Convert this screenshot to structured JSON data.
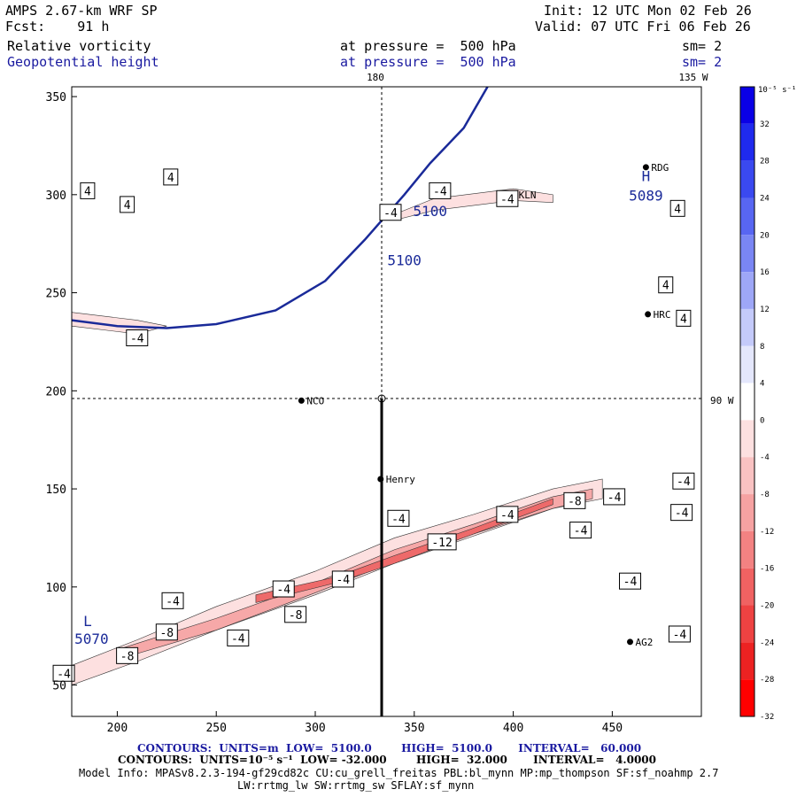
{
  "header": {
    "model_title": "AMPS 2.67-km WRF SP",
    "fcst": "Fcst:    91 h",
    "init": "Init: 12 UTC Mon 02 Feb 26",
    "valid": "Valid: 07 UTC Fri 06 Feb 26",
    "field1_name": "Relative vorticity",
    "field1_level": "at pressure =  500 hPa",
    "field1_sm": "sm= 2",
    "field2_name": "Geopotential height",
    "field2_level": "at pressure =  500 hPa",
    "field2_sm": "sm= 2"
  },
  "map_labels": {
    "lon_180": "180",
    "lon_135w": "135 W",
    "lon_90w": "90 W"
  },
  "stations": [
    {
      "name": "NCO",
      "x": 293,
      "y": 195
    },
    {
      "name": "Henry",
      "x": 333,
      "y": 155
    },
    {
      "name": "KLN",
      "x": 400,
      "y": 300
    },
    {
      "name": "RDG",
      "x": 467,
      "y": 314
    },
    {
      "name": "HRC",
      "x": 468,
      "y": 239
    },
    {
      "name": "AG2",
      "x": 459,
      "y": 72
    }
  ],
  "colors": {
    "height_contour": "#1a2a99",
    "vort_neg_light": "#fde0e0",
    "vort_neg_mid": "#f6a8a8",
    "vort_neg_dark": "#ee6a6a"
  },
  "chart_data": {
    "type": "contour",
    "xlim": [
      177,
      495
    ],
    "ylim": [
      34,
      355
    ],
    "x_ticks": [
      200,
      250,
      300,
      350,
      400,
      450
    ],
    "y_ticks": [
      50,
      100,
      150,
      200,
      250,
      300,
      350
    ],
    "height_contours": [
      {
        "value": "5100",
        "points": [
          [
            177,
            236
          ],
          [
            200,
            233
          ],
          [
            225,
            232
          ],
          [
            250,
            234
          ],
          [
            280,
            241
          ],
          [
            305,
            256
          ],
          [
            325,
            277
          ],
          [
            345,
            300
          ],
          [
            358,
            316
          ],
          [
            375,
            334
          ],
          [
            387,
            355
          ]
        ]
      }
    ],
    "height_labels": [
      {
        "text": "5100",
        "x": 345,
        "y": 264
      },
      {
        "text": "5100",
        "x": 358,
        "y": 289
      },
      {
        "text": "H",
        "x": 467,
        "y": 307
      },
      {
        "text": "5089",
        "x": 467,
        "y": 297
      },
      {
        "text": "L",
        "x": 185,
        "y": 80
      },
      {
        "text": "5070",
        "x": 187,
        "y": 71
      }
    ],
    "vorticity_labels": [
      {
        "text": "4",
        "x": 185,
        "y": 302
      },
      {
        "text": "4",
        "x": 205,
        "y": 295
      },
      {
        "text": "4",
        "x": 227,
        "y": 309
      },
      {
        "text": "-4",
        "x": 210,
        "y": 227
      },
      {
        "text": "-4",
        "x": 338,
        "y": 291
      },
      {
        "text": "-4",
        "x": 363,
        "y": 302
      },
      {
        "text": "-4",
        "x": 397,
        "y": 298
      },
      {
        "text": "4",
        "x": 483,
        "y": 293
      },
      {
        "text": "4",
        "x": 477,
        "y": 254
      },
      {
        "text": "4",
        "x": 486,
        "y": 237
      },
      {
        "text": "-4",
        "x": 486,
        "y": 154
      },
      {
        "text": "-4",
        "x": 485,
        "y": 138
      },
      {
        "text": "-8",
        "x": 431,
        "y": 144
      },
      {
        "text": "-4",
        "x": 451,
        "y": 146
      },
      {
        "text": "-4",
        "x": 397,
        "y": 137
      },
      {
        "text": "-4",
        "x": 434,
        "y": 129
      },
      {
        "text": "-12",
        "x": 364,
        "y": 123
      },
      {
        "text": "-4",
        "x": 342,
        "y": 135
      },
      {
        "text": "-4",
        "x": 459,
        "y": 103
      },
      {
        "text": "-4",
        "x": 484,
        "y": 76
      },
      {
        "text": "-4",
        "x": 314,
        "y": 104
      },
      {
        "text": "-4",
        "x": 284,
        "y": 99
      },
      {
        "text": "-8",
        "x": 290,
        "y": 86
      },
      {
        "text": "-4",
        "x": 228,
        "y": 93
      },
      {
        "text": "-8",
        "x": 225,
        "y": 77
      },
      {
        "text": "-4",
        "x": 261,
        "y": 74
      },
      {
        "text": "-8",
        "x": 205,
        "y": 65
      },
      {
        "text": "-4",
        "x": 173,
        "y": 56
      }
    ],
    "colorbar": {
      "unit": "10⁻⁵ s⁻¹",
      "ticks": [
        "32",
        "28",
        "24",
        "20",
        "16",
        "12",
        "8",
        "4",
        "0",
        "-4",
        "-8",
        "-12",
        "-16",
        "-20",
        "-24",
        "-28",
        "-32"
      ],
      "colors": [
        "#0a00e6",
        "#1f2aee",
        "#3a49f0",
        "#5866f2",
        "#7a86f4",
        "#9ea7f7",
        "#c4cafa",
        "#e4e7fc",
        "#ffffff",
        "#fde0e0",
        "#f9c2c2",
        "#f6a2a2",
        "#f38282",
        "#f06262",
        "#ee4242",
        "#ec2222",
        "#ff0000"
      ]
    }
  },
  "footer": {
    "line1_contours": "CONTOURS:  UNITS=m  LOW=  5100.0        HIGH=  5100.0       INTERVAL=   60.000",
    "line2_contours": "CONTOURS:  UNITS=10⁻⁵ s⁻¹  LOW= -32.000        HIGH=  32.000       INTERVAL=   4.0000",
    "line3_model": "Model Info: MPASv8.2.3-194-gf29cd82c CU:cu_grell_freitas PBL:bl_mynn MP:mp_thompson SF:sf_noahmp 2.7",
    "line4_model": "LW:rrtmg_lw SW:rrtmg_sw SFLAY:sf_mynn"
  }
}
